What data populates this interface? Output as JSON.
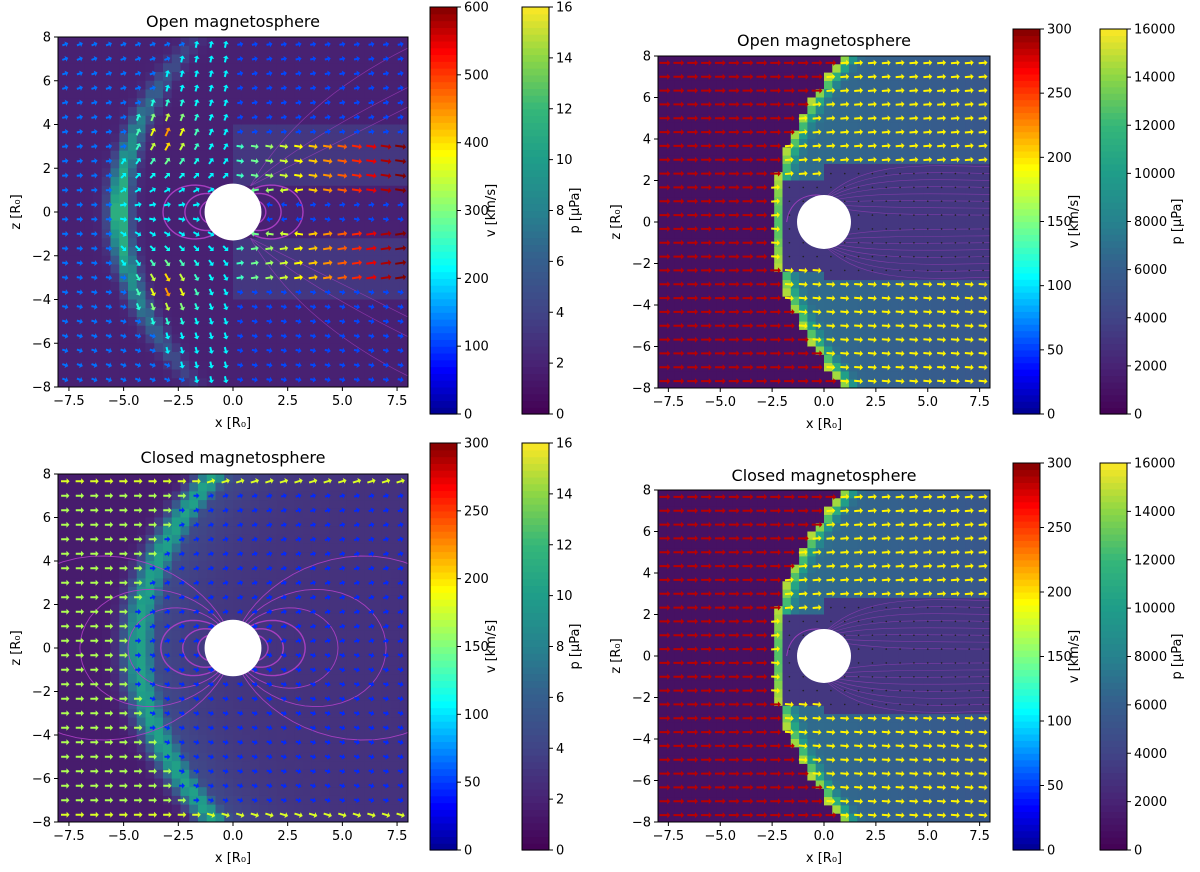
{
  "chart_data": [
    {
      "type": "heatmap",
      "title": "Open magnetosphere",
      "xlabel": "x [R₀]",
      "ylabel": "z [R₀]",
      "xlim": [
        -8,
        8
      ],
      "ylim": [
        -8,
        8
      ],
      "x_ticks": [
        "−7.5",
        "−5.0",
        "−2.5",
        "0.0",
        "2.5",
        "5.0",
        "7.5"
      ],
      "x_tick_values": [
        -7.5,
        -5,
        -2.5,
        0,
        2.5,
        5,
        7.5
      ],
      "y_ticks": [
        "−8",
        "−6",
        "−4",
        "−2",
        "0",
        "2",
        "4",
        "6",
        "8"
      ],
      "y_tick_values": [
        -8,
        -6,
        -4,
        -2,
        0,
        2,
        4,
        6,
        8
      ],
      "pressure_colorbar": {
        "label": "p [μPa]",
        "range": [
          0,
          16
        ],
        "ticks": [
          "0",
          "2",
          "4",
          "6",
          "8",
          "10",
          "12",
          "14",
          "16"
        ]
      },
      "velocity_colorbar": {
        "label": "v [km/s]",
        "range": [
          0,
          600
        ],
        "ticks": [
          "0",
          "100",
          "200",
          "300",
          "400",
          "500",
          "600"
        ]
      },
      "field_model": "open",
      "bow_shock_standoff": -5.2,
      "planet_radius": 1
    },
    {
      "type": "heatmap",
      "title": "Open magnetosphere",
      "xlabel": "x [R₀]",
      "ylabel": "z [R₀]",
      "xlim": [
        -8,
        8
      ],
      "ylim": [
        -8,
        8
      ],
      "x_ticks": [
        "−7.5",
        "−5.0",
        "−2.5",
        "0.0",
        "2.5",
        "5.0",
        "7.5"
      ],
      "x_tick_values": [
        -7.5,
        -5,
        -2.5,
        0,
        2.5,
        5,
        7.5
      ],
      "y_ticks": [
        "−8",
        "−6",
        "−4",
        "−2",
        "0",
        "2",
        "4",
        "6",
        "8"
      ],
      "y_tick_values": [
        -8,
        -6,
        -4,
        -2,
        0,
        2,
        4,
        6,
        8
      ],
      "velocity_colorbar": {
        "label": "v [km/s]",
        "range": [
          0,
          300
        ],
        "ticks": [
          "0",
          "50",
          "100",
          "150",
          "200",
          "250",
          "300"
        ]
      },
      "pressure_colorbar": {
        "label": "p [μPa]",
        "range": [
          0,
          16000
        ],
        "ticks": [
          "0",
          "2000",
          "4000",
          "6000",
          "8000",
          "10000",
          "12000",
          "14000",
          "16000"
        ]
      },
      "field_model": "tail",
      "bow_shock_standoff": -2.5,
      "planet_radius": 1
    },
    {
      "type": "heatmap",
      "title": "Closed magnetosphere",
      "xlabel": "x [R₀]",
      "ylabel": "z [R₀]",
      "xlim": [
        -8,
        8
      ],
      "ylim": [
        -8,
        8
      ],
      "x_ticks": [
        "−7.5",
        "−5.0",
        "−2.5",
        "0.0",
        "2.5",
        "5.0",
        "7.5"
      ],
      "x_tick_values": [
        -7.5,
        -5,
        -2.5,
        0,
        2.5,
        5,
        7.5
      ],
      "y_ticks": [
        "−8",
        "−6",
        "−4",
        "−2",
        "0",
        "2",
        "4",
        "6",
        "8"
      ],
      "y_tick_values": [
        -8,
        -6,
        -4,
        -2,
        0,
        2,
        4,
        6,
        8
      ],
      "pressure_colorbar": {
        "label": "p [μPa]",
        "range": [
          0,
          16
        ],
        "ticks": [
          "0",
          "2",
          "4",
          "6",
          "8",
          "10",
          "12",
          "14",
          "16"
        ]
      },
      "velocity_colorbar": {
        "label": "v [km/s]",
        "range": [
          0,
          300
        ],
        "ticks": [
          "0",
          "50",
          "100",
          "150",
          "200",
          "250",
          "300"
        ]
      },
      "field_model": "dipole",
      "bow_shock_standoff": -4.3,
      "planet_radius": 1
    },
    {
      "type": "heatmap",
      "title": "Closed magnetosphere",
      "xlabel": "x [R₀]",
      "ylabel": "z [R₀]",
      "xlim": [
        -8,
        8
      ],
      "ylim": [
        -8,
        8
      ],
      "x_ticks": [
        "−7.5",
        "−5.0",
        "−2.5",
        "0.0",
        "2.5",
        "5.0",
        "7.5"
      ],
      "x_tick_values": [
        -7.5,
        -5,
        -2.5,
        0,
        2.5,
        5,
        7.5
      ],
      "y_ticks": [
        "−8",
        "−6",
        "−4",
        "−2",
        "0",
        "2",
        "4",
        "6",
        "8"
      ],
      "y_tick_values": [
        -8,
        -6,
        -4,
        -2,
        0,
        2,
        4,
        6,
        8
      ],
      "velocity_colorbar": {
        "label": "v [km/s]",
        "range": [
          0,
          300
        ],
        "ticks": [
          "0",
          "50",
          "100",
          "150",
          "200",
          "250",
          "300"
        ]
      },
      "pressure_colorbar": {
        "label": "p [μPa]",
        "range": [
          0,
          16000
        ],
        "ticks": [
          "0",
          "2000",
          "4000",
          "6000",
          "8000",
          "10000",
          "12000",
          "14000",
          "16000"
        ]
      },
      "field_model": "tail",
      "bow_shock_standoff": -2.5,
      "planet_radius": 1
    }
  ],
  "colors": {
    "background_field": "#46307a",
    "field_lines": "#b040c8",
    "planet": "#ffffff"
  }
}
